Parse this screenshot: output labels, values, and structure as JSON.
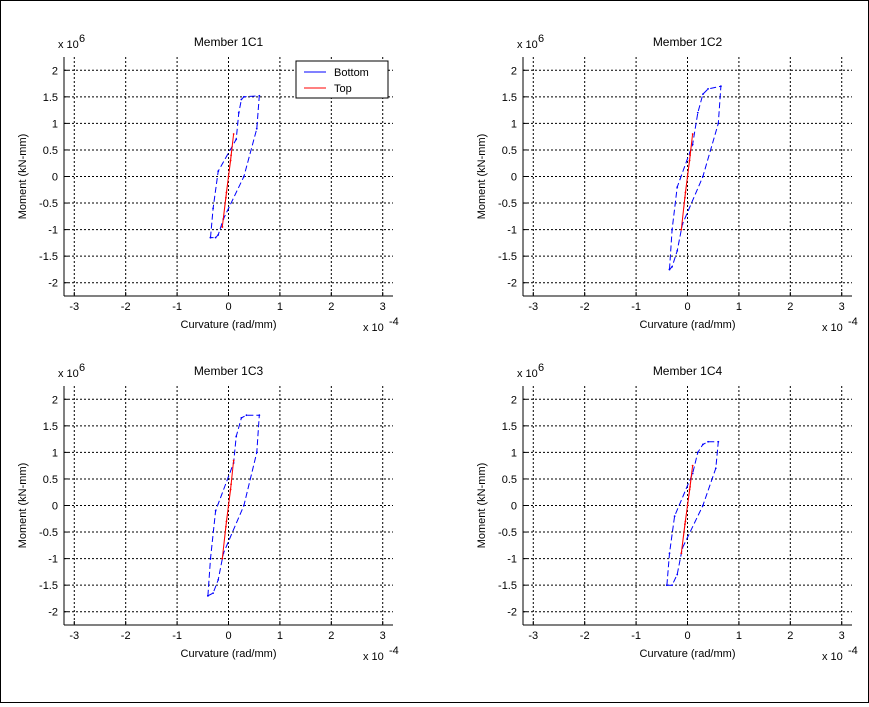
{
  "figure": {
    "background": "#ffffff"
  },
  "chart_data": [
    {
      "type": "line",
      "title": "Member 1C1",
      "xlabel": "Curvature (rad/mm)",
      "ylabel": "Moment (kN-mm)",
      "x_multiplier": "x 10",
      "x_exponent": "-4",
      "y_multiplier": "x 10",
      "y_exponent": "6",
      "xlim": [
        -3.2,
        3.2
      ],
      "ylim": [
        -2.25,
        2.25
      ],
      "xticks": [
        -3,
        -2,
        -1,
        0,
        1,
        2,
        3
      ],
      "xtick_labels": [
        "-3",
        "-2",
        "-1",
        "0",
        "1",
        "2",
        "3"
      ],
      "yticks": [
        -2,
        -1.5,
        -1,
        -0.5,
        0,
        0.5,
        1,
        1.5,
        2
      ],
      "ytick_labels": [
        "-2",
        "-1.5",
        "-1",
        "-0.5",
        "0",
        "0.5",
        "1",
        "1.5",
        "2"
      ],
      "grid": true,
      "legend": {
        "position": "top-right",
        "entries": [
          "Bottom",
          "Top"
        ]
      },
      "series": [
        {
          "name": "Bottom",
          "color": "#0000ff",
          "x": [
            -0.35,
            -0.3,
            -0.2,
            0.15,
            0.2,
            0.25,
            0.3,
            0.6,
            0.55,
            0.3,
            -0.1,
            -0.2,
            -0.25,
            -0.35
          ],
          "y": [
            -1.15,
            -0.6,
            0.1,
            0.7,
            1.2,
            1.45,
            1.5,
            1.52,
            0.9,
            0.0,
            -0.8,
            -1.1,
            -1.15,
            -1.15
          ]
        },
        {
          "name": "Top",
          "color": "#ff0000",
          "x": [
            -0.12,
            -0.05,
            0.0,
            0.05,
            0.1,
            0.04,
            -0.04,
            -0.12
          ],
          "y": [
            -0.95,
            -0.4,
            0.0,
            0.4,
            0.8,
            0.3,
            -0.3,
            -0.95
          ]
        }
      ]
    },
    {
      "type": "line",
      "title": "Member 1C2",
      "xlabel": "Curvature (rad/mm)",
      "ylabel": "Moment (kN-mm)",
      "x_multiplier": "x 10",
      "x_exponent": "-4",
      "y_multiplier": "x 10",
      "y_exponent": "6",
      "xlim": [
        -3.2,
        3.2
      ],
      "ylim": [
        -2.25,
        2.25
      ],
      "xticks": [
        -3,
        -2,
        -1,
        0,
        1,
        2,
        3
      ],
      "xtick_labels": [
        "-3",
        "-2",
        "-1",
        "0",
        "1",
        "2",
        "3"
      ],
      "yticks": [
        -2,
        -1.5,
        -1,
        -0.5,
        0,
        0.5,
        1,
        1.5,
        2
      ],
      "ytick_labels": [
        "-2",
        "-1.5",
        "-1",
        "-0.5",
        "0",
        "0.5",
        "1",
        "1.5",
        "2"
      ],
      "grid": true,
      "series": [
        {
          "name": "Bottom",
          "color": "#0000ff",
          "x": [
            -0.35,
            -0.3,
            -0.2,
            0.1,
            0.2,
            0.3,
            0.4,
            0.65,
            0.6,
            0.3,
            -0.1,
            -0.2,
            -0.3,
            -0.35
          ],
          "y": [
            -1.75,
            -1.0,
            -0.2,
            0.6,
            1.2,
            1.55,
            1.65,
            1.7,
            1.0,
            0.0,
            -0.9,
            -1.4,
            -1.7,
            -1.75
          ]
        },
        {
          "name": "Top",
          "color": "#ff0000",
          "x": [
            -0.12,
            -0.05,
            0.0,
            0.05,
            0.1,
            0.04,
            -0.04,
            -0.12
          ],
          "y": [
            -1.0,
            -0.4,
            0.0,
            0.4,
            0.8,
            0.3,
            -0.3,
            -1.0
          ]
        }
      ]
    },
    {
      "type": "line",
      "title": "Member 1C3",
      "xlabel": "Curvature (rad/mm)",
      "ylabel": "Moment (kN-mm)",
      "x_multiplier": "x 10",
      "x_exponent": "-4",
      "y_multiplier": "x 10",
      "y_exponent": "6",
      "xlim": [
        -3.2,
        3.2
      ],
      "ylim": [
        -2.25,
        2.25
      ],
      "xticks": [
        -3,
        -2,
        -1,
        0,
        1,
        2,
        3
      ],
      "xtick_labels": [
        "-3",
        "-2",
        "-1",
        "0",
        "1",
        "2",
        "3"
      ],
      "yticks": [
        -2,
        -1.5,
        -1,
        -0.5,
        0,
        0.5,
        1,
        1.5,
        2
      ],
      "ytick_labels": [
        "-2",
        "-1.5",
        "-1",
        "-0.5",
        "0",
        "0.5",
        "1",
        "1.5",
        "2"
      ],
      "grid": true,
      "series": [
        {
          "name": "Bottom",
          "color": "#0000ff",
          "x": [
            -0.4,
            -0.35,
            -0.25,
            0.1,
            0.15,
            0.25,
            0.35,
            0.6,
            0.55,
            0.3,
            -0.1,
            -0.2,
            -0.3,
            -0.4
          ],
          "y": [
            -1.7,
            -1.0,
            -0.1,
            0.8,
            1.3,
            1.65,
            1.7,
            1.7,
            1.0,
            0.0,
            -0.9,
            -1.4,
            -1.65,
            -1.7
          ]
        },
        {
          "name": "Top",
          "color": "#ff0000",
          "x": [
            -0.12,
            -0.05,
            0.0,
            0.05,
            0.1,
            0.04,
            -0.04,
            -0.12
          ],
          "y": [
            -1.0,
            -0.4,
            0.0,
            0.4,
            0.85,
            0.3,
            -0.3,
            -1.0
          ]
        }
      ]
    },
    {
      "type": "line",
      "title": "Member 1C4",
      "xlabel": "Curvature (rad/mm)",
      "ylabel": "Moment (kN-mm)",
      "x_multiplier": "x 10",
      "x_exponent": "-4",
      "y_multiplier": "x 10",
      "y_exponent": "6",
      "xlim": [
        -3.2,
        3.2
      ],
      "ylim": [
        -2.25,
        2.25
      ],
      "xticks": [
        -3,
        -2,
        -1,
        0,
        1,
        2,
        3
      ],
      "xtick_labels": [
        "-3",
        "-2",
        "-1",
        "0",
        "1",
        "2",
        "3"
      ],
      "yticks": [
        -2,
        -1.5,
        -1,
        -0.5,
        0,
        0.5,
        1,
        1.5,
        2
      ],
      "ytick_labels": [
        "-2",
        "-1.5",
        "-1",
        "-0.5",
        "0",
        "0.5",
        "1",
        "1.5",
        "2"
      ],
      "grid": true,
      "series": [
        {
          "name": "Bottom",
          "color": "#0000ff",
          "x": [
            -0.4,
            -0.35,
            -0.25,
            0.1,
            0.2,
            0.3,
            0.4,
            0.6,
            0.55,
            0.3,
            -0.1,
            -0.2,
            -0.3,
            -0.4
          ],
          "y": [
            -1.5,
            -0.9,
            -0.2,
            0.6,
            1.0,
            1.15,
            1.2,
            1.2,
            0.7,
            0.0,
            -0.8,
            -1.3,
            -1.5,
            -1.5
          ]
        },
        {
          "name": "Top",
          "color": "#ff0000",
          "x": [
            -0.12,
            -0.05,
            0.0,
            0.05,
            0.1,
            0.04,
            -0.04,
            -0.12
          ],
          "y": [
            -0.9,
            -0.35,
            0.0,
            0.35,
            0.75,
            0.3,
            -0.3,
            -0.9
          ]
        }
      ]
    }
  ]
}
